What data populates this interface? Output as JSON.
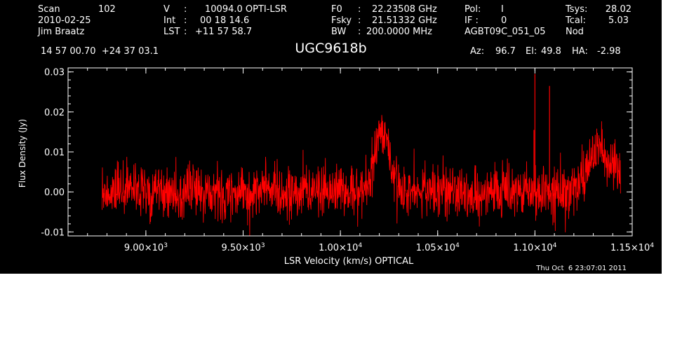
{
  "header": {
    "scan_label": "Scan",
    "scan_value": "102",
    "date": "2010-02-25",
    "observer": "Jim Braatz",
    "v_label": "V",
    "v_value": "10094.0 OPTI-LSR",
    "int_label": "Int",
    "int_value": "00 18 14.6",
    "lst_label": "LST",
    "lst_value": "+11 57 58.7",
    "f0_label": "F0",
    "f0_value": "22.23508 GHz",
    "fsky_label": "Fsky",
    "fsky_value": "21.51332 GHz",
    "bw_label": "BW",
    "bw_value": "200.0000 MHz",
    "pol_label": "Pol:",
    "pol_value": "I",
    "if_label": "IF :",
    "if_value": "0",
    "project": "AGBT09C_051_05",
    "tsys_label": "Tsys:",
    "tsys_value": "28.02",
    "tcal_label": "Tcal:",
    "tcal_value": "5.03",
    "mode": "Nod",
    "coords": "14 57 00.70  +24 37 03.1",
    "az_label": "Az:",
    "az_value": "96.7",
    "el_label": "El:",
    "el_value": "49.8",
    "ha_label": "HA:",
    "ha_value": "-2.98"
  },
  "footer": {
    "datestamp": "Thu Oct  6 23:07:01 2011"
  },
  "colors": {
    "background": "#000000",
    "axes": "#ffffff",
    "trace": "#ff0000"
  },
  "chart_data": {
    "type": "line",
    "title": "UGC9618b",
    "xlabel": "LSR Velocity (km/s) OPTICAL",
    "ylabel": "Flux Density (Jy)",
    "xlim": [
      8600,
      11500
    ],
    "ylim": [
      -0.011,
      0.031
    ],
    "x_ticks": [
      {
        "value": 9000,
        "mantissa": "9.00",
        "exp": "3"
      },
      {
        "value": 9500,
        "mantissa": "9.50",
        "exp": "3"
      },
      {
        "value": 10000,
        "mantissa": "1.00",
        "exp": "4"
      },
      {
        "value": 10500,
        "mantissa": "1.05",
        "exp": "4"
      },
      {
        "value": 11000,
        "mantissa": "1.10",
        "exp": "4"
      },
      {
        "value": 11500,
        "mantissa": "1.15",
        "exp": "4"
      }
    ],
    "y_ticks": [
      {
        "value": -0.01,
        "label": "-0.01"
      },
      {
        "value": 0.0,
        "label": "0.00"
      },
      {
        "value": 0.01,
        "label": "0.01"
      },
      {
        "value": 0.02,
        "label": "0.02"
      },
      {
        "value": 0.03,
        "label": "0.03"
      }
    ],
    "series": [
      {
        "color": "#ff0000",
        "x_start": 8775,
        "x_end": 11440,
        "noise_rms": 0.0033,
        "features": [
          {
            "center": 10205,
            "width": 35,
            "amplitude": 0.0105
          },
          {
            "center": 10235,
            "width": 40,
            "amplitude": 0.006
          },
          {
            "center": 11290,
            "width": 40,
            "amplitude": 0.007
          },
          {
            "center": 11350,
            "width": 30,
            "amplitude": 0.008
          },
          {
            "center": 11420,
            "width": 25,
            "amplitude": 0.006
          }
        ],
        "spikes": [
          {
            "x": 11000,
            "y": 0.0295
          },
          {
            "x": 11075,
            "y": 0.0265
          },
          {
            "x": 10995,
            "y": 0.0155
          }
        ]
      }
    ]
  }
}
